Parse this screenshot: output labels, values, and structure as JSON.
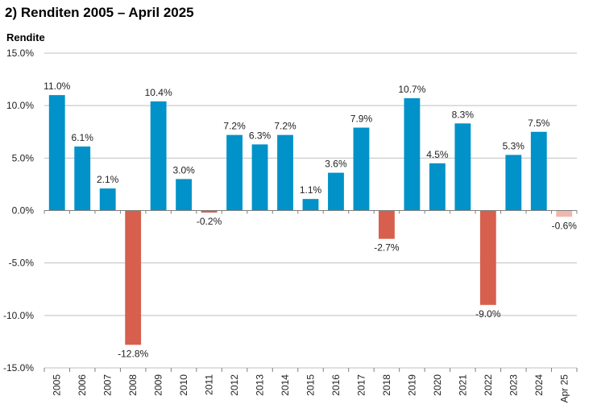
{
  "chart_data": {
    "type": "bar",
    "title": "2)   Renditen 2005 – April 2025",
    "ylabel": "Rendite",
    "xlabel": "",
    "ylim": [
      -15,
      15
    ],
    "yticks": [
      15,
      10,
      5,
      0,
      -5,
      -10,
      -15
    ],
    "ytick_labels": [
      "15.0%",
      "10.0%",
      "5.0%",
      "0.0%",
      "-5.0%",
      "-10.0%",
      "-15.0%"
    ],
    "grid": "horizontal",
    "categories": [
      "2005",
      "2006",
      "2007",
      "2008",
      "2009",
      "2010",
      "2011",
      "2012",
      "2013",
      "2014",
      "2015",
      "2016",
      "2017",
      "2018",
      "2019",
      "2020",
      "2021",
      "2022",
      "2023",
      "2024",
      "Apr 25"
    ],
    "values": [
      11.0,
      6.1,
      2.1,
      -12.8,
      10.4,
      3.0,
      -0.2,
      7.2,
      6.3,
      7.2,
      1.1,
      3.6,
      7.9,
      -2.7,
      10.7,
      4.5,
      8.3,
      -9.0,
      5.3,
      7.5,
      -0.6
    ],
    "value_labels": [
      "11.0%",
      "6.1%",
      "2.1%",
      "-12.8%",
      "10.4%",
      "3.0%",
      "-0.2%",
      "7.2%",
      "6.3%",
      "7.2%",
      "1.1%",
      "3.6%",
      "7.9%",
      "-2.7%",
      "10.7%",
      "4.5%",
      "8.3%",
      "-9.0%",
      "5.3%",
      "7.5%",
      "-0.6%"
    ],
    "colors": {
      "positive": "#0092C8",
      "negative": "#D6604D",
      "partial_negative": "#EFB8AF",
      "grid": "#BFBFBF",
      "axis": "#7F7F7F"
    }
  }
}
